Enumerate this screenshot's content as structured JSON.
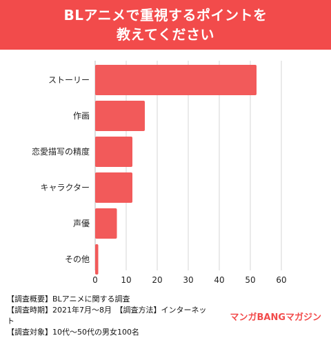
{
  "title": {
    "line1": "BLアニメで重視するポイントを",
    "line2": "教えてください"
  },
  "chart_data": {
    "type": "bar",
    "orientation": "horizontal",
    "categories": [
      "ストーリー",
      "作画",
      "恋愛描写の精度",
      "キャラクター",
      "声優",
      "その他"
    ],
    "values": [
      52,
      16,
      12,
      12,
      7,
      1
    ],
    "xlim": [
      0,
      60
    ],
    "xticks": [
      0,
      10,
      20,
      30,
      40,
      50,
      60
    ],
    "grid": true,
    "bar_color": "#f25a5a"
  },
  "footer": {
    "line1": "【調査概要】BLアニメに関する調査",
    "line2": "【調査時期】2021年7月～8月　【調査方法】インターネット",
    "line3": "【調査対象】10代～50代の男女100名"
  },
  "brand": "マンガBANGマガジン"
}
